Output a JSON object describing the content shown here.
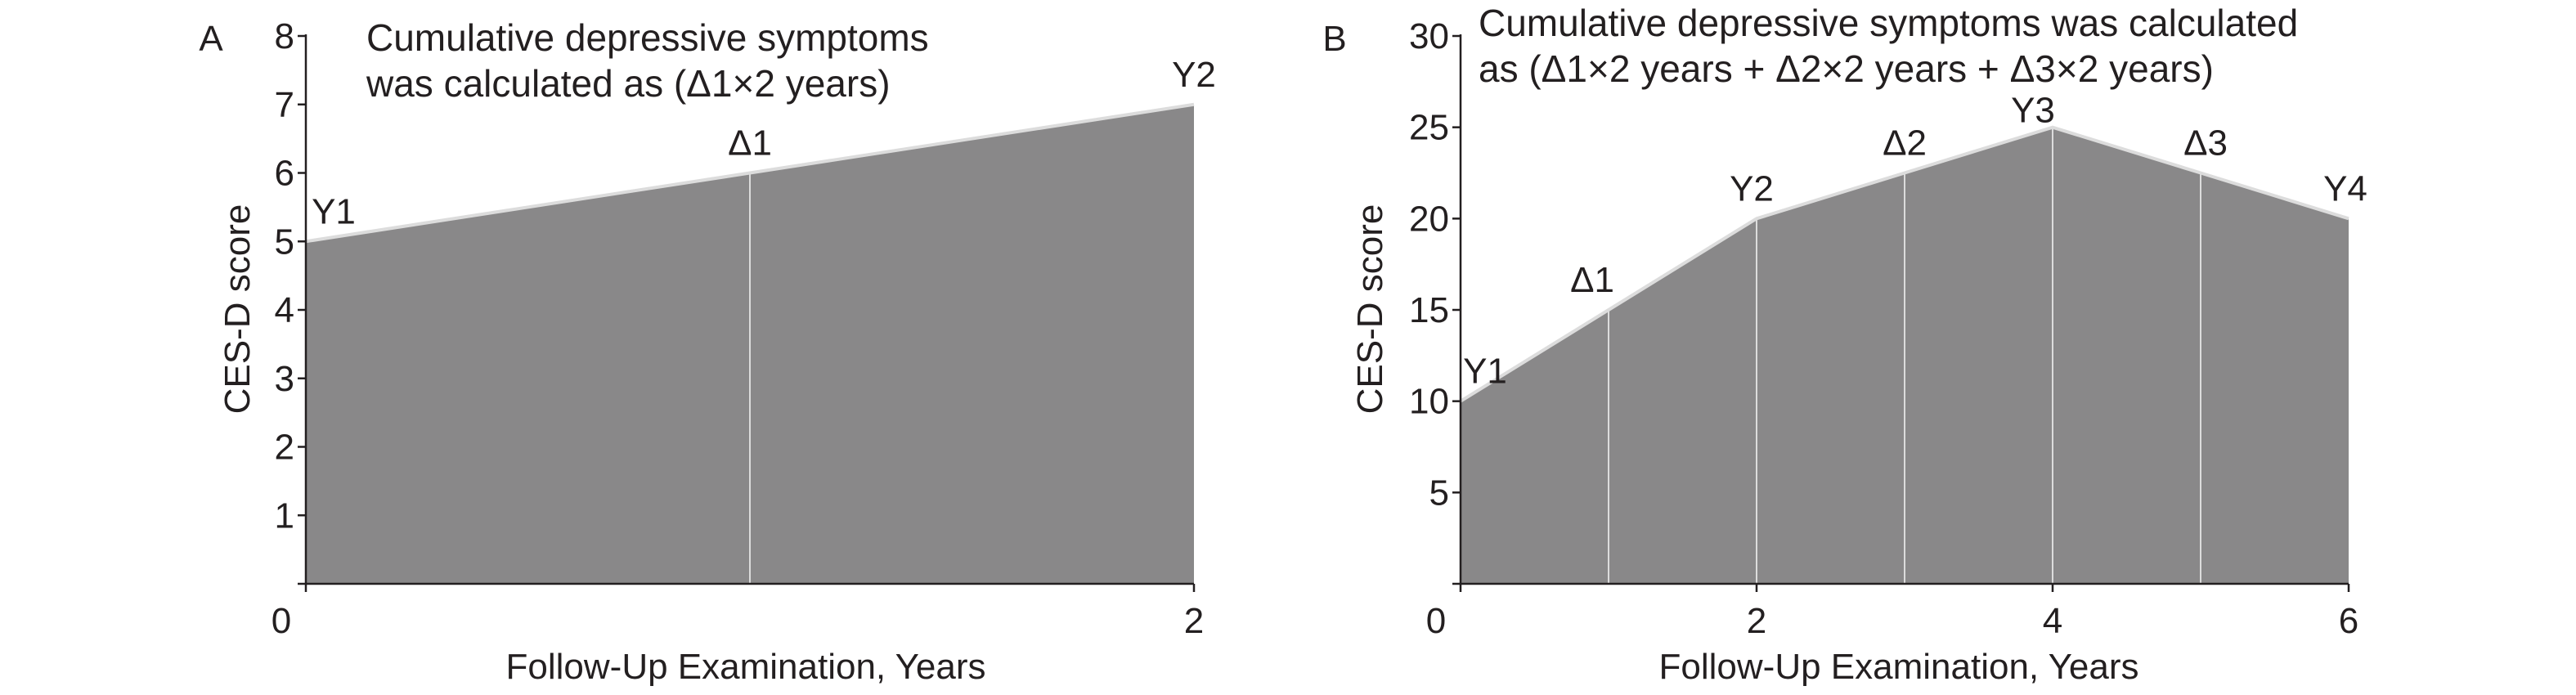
{
  "chart_data": [
    {
      "type": "area",
      "panel": "A",
      "annotation_lines": [
        "Cumulative depressive symptoms",
        "was calculated as (Δ1×2 years)"
      ],
      "xlabel": "Follow-Up Examination, Years",
      "ylabel": "CES-D score",
      "xlim": [
        0,
        2
      ],
      "ylim": [
        0,
        8
      ],
      "x_ticks": [
        0,
        2
      ],
      "y_ticks": [
        1,
        2,
        3,
        4,
        5,
        6,
        7,
        8
      ],
      "x": [
        0,
        1,
        2
      ],
      "values": [
        5,
        6,
        7
      ],
      "point_labels": [
        "Y1",
        "Δ1",
        "Y2"
      ],
      "fill_color": "#898889",
      "edge_color": "#dcdcdc"
    },
    {
      "type": "area",
      "panel": "B",
      "annotation_lines": [
        "Cumulative depressive symptoms was calculated",
        "as (Δ1×2 years + Δ2×2 years + Δ3×2 years)"
      ],
      "xlabel": "Follow-Up Examination, Years",
      "ylabel": "CES-D score",
      "xlim": [
        0,
        6
      ],
      "ylim": [
        0,
        30
      ],
      "x_ticks": [
        0,
        2,
        4,
        6
      ],
      "y_ticks": [
        5,
        10,
        15,
        20,
        25,
        30
      ],
      "x": [
        0,
        1,
        2,
        3,
        4,
        5,
        6
      ],
      "values": [
        10,
        15,
        20,
        22.5,
        25,
        22.5,
        20
      ],
      "point_labels": [
        "Y1",
        "Δ1",
        "Y2",
        "Δ2",
        "Y3",
        "Δ3",
        "Y4"
      ],
      "fill_color": "#898889",
      "edge_color": "#dcdcdc"
    }
  ]
}
